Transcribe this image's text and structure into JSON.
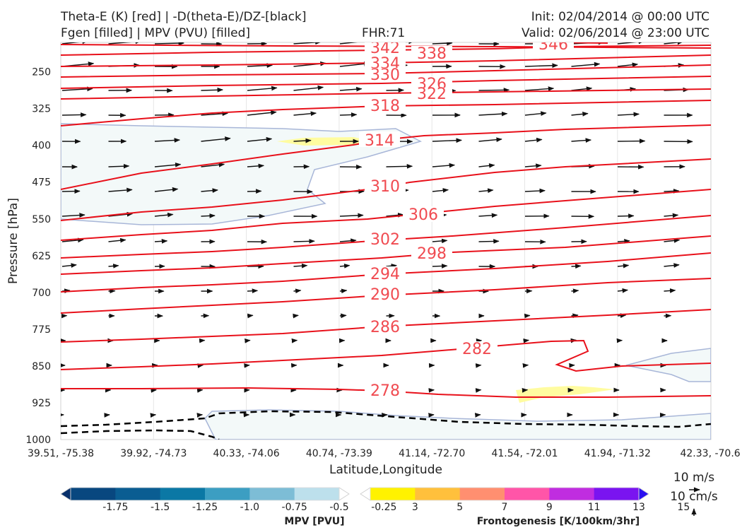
{
  "header": {
    "title_line1": "Theta-E (K) [red] | -D(theta-E)/DZ-[black]",
    "title_line2": "Fgen [filled] | MPV (PVU) [filled]",
    "fhr": "FHR:71",
    "init": "Init: 02/04/2014 @ 00:00 UTC",
    "valid": "Valid: 02/06/2014 @ 23:00 UTC"
  },
  "chart_data": {
    "type": "cross-section",
    "xlabel": "Latitude,Longitude",
    "ylabel": "Pressure [hPa]",
    "x_ticks": [
      "39.51, -75.38",
      "39.92, -74.73",
      "40.33, -74.06",
      "40.74, -73.39",
      "41.14, -72.70",
      "41.54, -72.01",
      "41.94, -71.32",
      "42.33, -70.6"
    ],
    "y_ticks": [
      250,
      325,
      400,
      475,
      550,
      625,
      700,
      775,
      850,
      925,
      1000
    ],
    "ylim": [
      1000,
      190
    ],
    "theta_e_contours": [
      {
        "label": "342",
        "color": "#e8101a"
      },
      {
        "label": "338",
        "color": "#e8101a"
      },
      {
        "label": "334",
        "color": "#e8101a"
      },
      {
        "label": "330",
        "color": "#e8101a"
      },
      {
        "label": "326",
        "color": "#e8101a"
      },
      {
        "label": "322",
        "color": "#e8101a"
      },
      {
        "label": "318",
        "color": "#e8101a"
      },
      {
        "label": "314",
        "color": "#e8101a"
      },
      {
        "label": "310",
        "color": "#e8101a"
      },
      {
        "label": "306",
        "color": "#e8101a"
      },
      {
        "label": "302",
        "color": "#e8101a"
      },
      {
        "label": "298",
        "color": "#e8101a"
      },
      {
        "label": "294",
        "color": "#e8101a"
      },
      {
        "label": "290",
        "color": "#e8101a"
      },
      {
        "label": "286",
        "color": "#e8101a"
      },
      {
        "label": "282",
        "color": "#e8101a"
      },
      {
        "label": "278",
        "color": "#e8101a"
      },
      {
        "label": "346",
        "color": "#e8101a"
      }
    ],
    "mpv_colorbar": {
      "label": "MPV [PVU]",
      "ticks": [
        "-1.75",
        "-1.5",
        "-1.25",
        "-1.0",
        "-0.75",
        "-0.5",
        "-0.25"
      ],
      "colors": [
        "#08306b",
        "#08477f",
        "#0a5d92",
        "#0b78a5",
        "#3c9ec2",
        "#7dbdd6",
        "#bde0ec",
        "#ffffff"
      ]
    },
    "fgen_colorbar": {
      "label": "Frontogenesis [K/100km/3hr]",
      "ticks": [
        "3",
        "5",
        "7",
        "9",
        "11",
        "13",
        "15"
      ],
      "colors": [
        "#ffffff",
        "#fff200",
        "#ffc03c",
        "#ff8f70",
        "#ff55a8",
        "#c02de0",
        "#7a14f0",
        "#2a10f0"
      ]
    },
    "wind_key": {
      "speed": "10 m/s",
      "vertical": "10 cm/s"
    },
    "grid": true
  }
}
